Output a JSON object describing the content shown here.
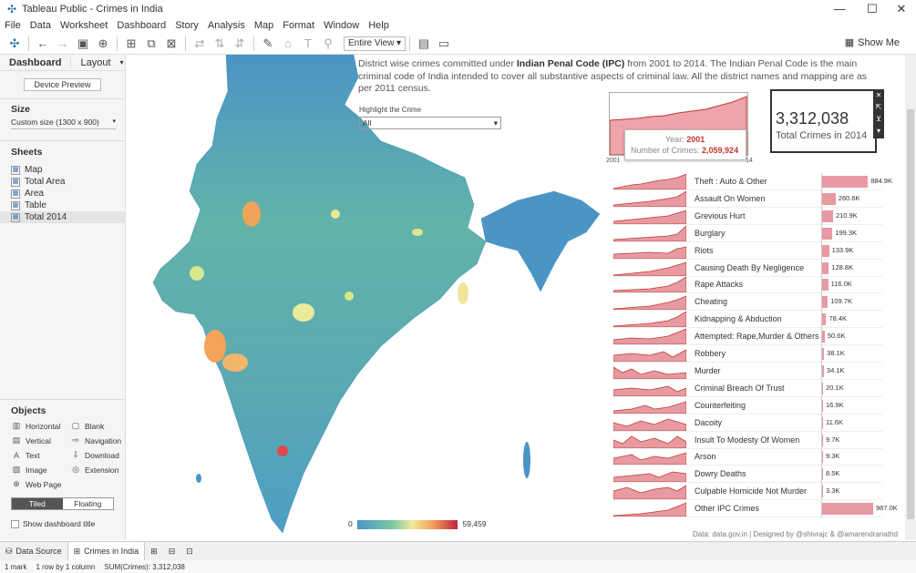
{
  "window": {
    "title": "Tableau Public - Crimes in India"
  },
  "menu": [
    "File",
    "Data",
    "Worksheet",
    "Dashboard",
    "Story",
    "Analysis",
    "Map",
    "Format",
    "Window",
    "Help"
  ],
  "toolbar": {
    "view_select": "Entire View",
    "show_me": "Show Me"
  },
  "leftpane": {
    "tabs": [
      "Dashboard",
      "Layout"
    ],
    "device_preview": "Device Preview",
    "size_heading": "Size",
    "size_value": "Custom size (1300 x 900)",
    "sheets_heading": "Sheets",
    "sheets": [
      "Map",
      "Total Area",
      "Area",
      "Table",
      "Total 2014"
    ],
    "objects_heading": "Objects",
    "objects": [
      "Horizontal",
      "Blank",
      "Vertical",
      "Navigation",
      "Text",
      "Download",
      "Image",
      "Extension",
      "Web Page"
    ],
    "tiled": "Tiled",
    "floating": "Floating",
    "show_title": "Show dashboard title"
  },
  "dashboard": {
    "desc_pre": "District wise crimes committed under ",
    "desc_bold": "Indian Penal Code (IPC)",
    "desc_post": " from 2001 to 2014. The Indian Penal Code is the main criminal code of India intended to cover all substantive aspects of criminal law. All the district names and mapping are as per 2011 census.",
    "highlight_label": "Highlight the Crime",
    "highlight_value": "All",
    "kpi_value": "3,312,038",
    "kpi_label": "Total Crimes in 2014",
    "area_axis_start": "2001",
    "area_axis_end": "14",
    "tooltip": {
      "year_label": "Year:",
      "year_value": "2001",
      "count_label": "Number of Crimes:",
      "count_value": "2,059,924"
    },
    "legend_min": "0",
    "legend_max": "59,459",
    "credit": "Data: data.gov.in   |   Designed by @shivrajc  &  @amarendranathd"
  },
  "crimes": [
    {
      "name": "Theft : Auto & Other",
      "value": "884.9K",
      "num": 884.9
    },
    {
      "name": "Assault On Women",
      "value": "260.6K",
      "num": 260.6
    },
    {
      "name": "Grevious Hurt",
      "value": "210.9K",
      "num": 210.9
    },
    {
      "name": "Burglary",
      "value": "199.3K",
      "num": 199.3
    },
    {
      "name": "Riots",
      "value": "133.9K",
      "num": 133.9
    },
    {
      "name": "Causing Death By Negligence",
      "value": "128.8K",
      "num": 128.8
    },
    {
      "name": "Rape Attacks",
      "value": "116.0K",
      "num": 116.0
    },
    {
      "name": "Cheating",
      "value": "109.7K",
      "num": 109.7
    },
    {
      "name": "Kidnapping & Abduction",
      "value": "78.4K",
      "num": 78.4
    },
    {
      "name": "Attempted: Rape,Murder & Others",
      "value": "50.6K",
      "num": 50.6
    },
    {
      "name": "Robbery",
      "value": "38.1K",
      "num": 38.1
    },
    {
      "name": "Murder",
      "value": "34.1K",
      "num": 34.1
    },
    {
      "name": "Criminal Breach Of Trust",
      "value": "20.1K",
      "num": 20.1
    },
    {
      "name": "Counterfeiting",
      "value": "16.9K",
      "num": 16.9
    },
    {
      "name": "Dacoity",
      "value": "11.6K",
      "num": 11.6
    },
    {
      "name": "Insult To Modesty Of Women",
      "value": "9.7K",
      "num": 9.7
    },
    {
      "name": "Arson",
      "value": "9.3K",
      "num": 9.3
    },
    {
      "name": "Dowry Deaths",
      "value": "8.5K",
      "num": 8.5
    },
    {
      "name": "Culpable Homicide Not Murder",
      "value": "3.3K",
      "num": 3.3
    },
    {
      "name": "Other IPC Crimes",
      "value": "987.0K",
      "num": 987.0
    }
  ],
  "bottom": {
    "data_source": "Data Source",
    "active_tab": "Crimes in India"
  },
  "status": {
    "marks": "1 mark",
    "rows": "1 row by 1 column",
    "sum": "SUM(Crimes): 3,312,038"
  },
  "colors": {
    "bar": "#e79aa2",
    "spark_line": "#c0392b",
    "accent": "#c0392b"
  }
}
